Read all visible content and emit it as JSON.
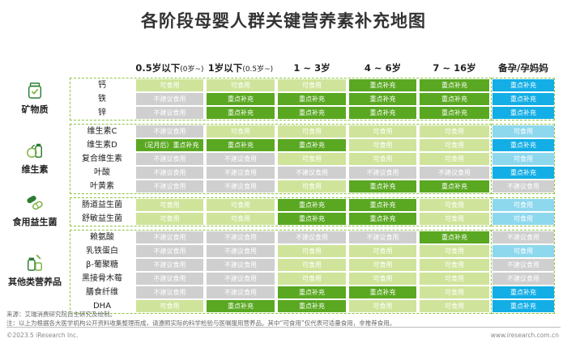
{
  "title": "各阶段母婴人群关键营养素补充地图",
  "columns": [
    {
      "main": "0.5岁以下",
      "sub": "(0岁~)"
    },
    {
      "main": "1岁以下",
      "sub": "(0.5岁~)"
    },
    {
      "main": "1 ~ 3岁",
      "sub": ""
    },
    {
      "main": "4 ~ 6岁",
      "sub": ""
    },
    {
      "main": "7 ~ 16岁",
      "sub": ""
    },
    {
      "main": "备孕/孕妈妈",
      "sub": ""
    }
  ],
  "labels": {
    "ok": "可食用",
    "key": "重点补充",
    "no": "不建议食用"
  },
  "categories": [
    {
      "name": "矿物质",
      "icon": "jar-icon",
      "rows": [
        {
          "nutrient": "钙",
          "cells": [
            "ok",
            "ok",
            "ok",
            "key",
            "key",
            "key"
          ]
        },
        {
          "nutrient": "铁",
          "cells": [
            "no",
            "key",
            "key",
            "key",
            "key",
            "key"
          ]
        },
        {
          "nutrient": "锌",
          "cells": [
            "no",
            "key",
            "key",
            "key",
            "key",
            "key"
          ]
        }
      ]
    },
    {
      "name": "维生素",
      "icon": "fruit-bottle-icon",
      "rows": [
        {
          "nutrient": "维生素C",
          "cells": [
            "no",
            "ok",
            "ok",
            "ok",
            "ok",
            "ok"
          ]
        },
        {
          "nutrient": "维生素D",
          "cells": [
            "key",
            "key",
            "key",
            "ok",
            "ok",
            "key"
          ],
          "first_text": "（足月后）重点补充"
        },
        {
          "nutrient": "复合维生素",
          "cells": [
            "no",
            "no",
            "ok",
            "ok",
            "ok",
            "ok"
          ]
        },
        {
          "nutrient": "叶酸",
          "cells": [
            "no",
            "no",
            "no",
            "no",
            "no",
            "key"
          ]
        },
        {
          "nutrient": "叶黄素",
          "cells": [
            "no",
            "no",
            "ok",
            "key",
            "key",
            "no"
          ]
        }
      ]
    },
    {
      "name": "食用益生菌",
      "icon": "capsule-icon",
      "rows": [
        {
          "nutrient": "肠道益生菌",
          "cells": [
            "ok",
            "ok",
            "key",
            "key",
            "ok",
            "ok"
          ]
        },
        {
          "nutrient": "舒敏益生菌",
          "cells": [
            "ok",
            "ok",
            "key",
            "key",
            "ok",
            "ok"
          ]
        }
      ]
    },
    {
      "name": "其他类营养品",
      "icon": "supplements-icon",
      "rows": [
        {
          "nutrient": "赖氨酸",
          "cells": [
            "no",
            "no",
            "no",
            "no",
            "key",
            "no"
          ]
        },
        {
          "nutrient": "乳铁蛋白",
          "cells": [
            "no",
            "no",
            "ok",
            "ok",
            "ok",
            "ok"
          ]
        },
        {
          "nutrient": "β-葡聚糖",
          "cells": [
            "no",
            "no",
            "ok",
            "ok",
            "ok",
            "no"
          ]
        },
        {
          "nutrient": "黑接骨木莓",
          "cells": [
            "no",
            "no",
            "ok",
            "ok",
            "ok",
            "no"
          ]
        },
        {
          "nutrient": "膳食纤维",
          "cells": [
            "no",
            "no",
            "key",
            "key",
            "ok",
            "key"
          ]
        },
        {
          "nutrient": "DHA",
          "cells": [
            "ok",
            "key",
            "key",
            "ok",
            "ok",
            "key"
          ]
        }
      ]
    }
  ],
  "footer": {
    "source": "来源：艾瑞消费研究院自主研究及绘制。",
    "note": "注：以上为根据各大医学机构公开资料收集整理而成，请遵照实际的科学检验与医嘱服用营养品。其中“可食用”仅代表可适量食用，非推荐食用。",
    "copyright": "©2023.5 iResearch Inc.",
    "site": "www.iresearch.com.cn"
  },
  "colors": {
    "ok": "#cfe49a",
    "key": "#5aa822",
    "no": "#cfcfcf",
    "preg_ok": "#8ed8ee",
    "preg_key": "#13aee6",
    "border": "#8cc63f"
  }
}
